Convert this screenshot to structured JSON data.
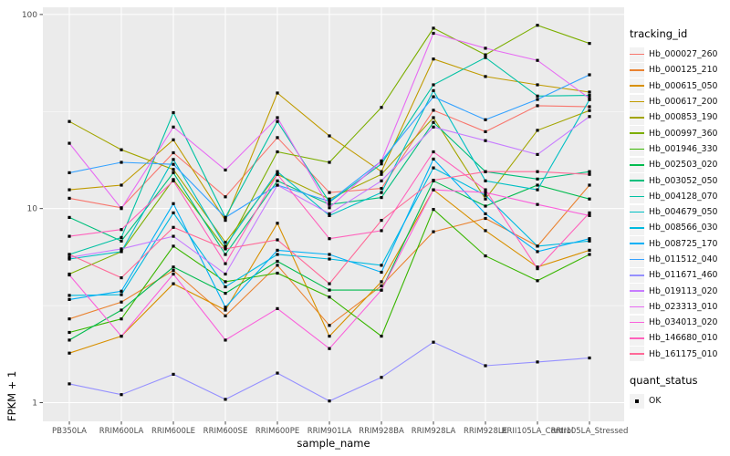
{
  "chart_data": {
    "type": "line",
    "title": "",
    "xlabel": "sample_name",
    "ylabel": "FPKM + 1",
    "y_scale": "log10",
    "y_ticks": [
      1,
      10,
      100
    ],
    "y_minor_gridlines": [
      3.1623,
      31.623
    ],
    "y_range": [
      0.93,
      110
    ],
    "grid": "on",
    "panel_bg": "#EBEBEB",
    "gridline_color": "#FFFFFF",
    "point_color": "#000000",
    "axis_text_color": "#4D4D4D",
    "legend_position": "right",
    "legend_title": "tracking_id",
    "quant_legend": {
      "title": "quant_status",
      "items": [
        "OK"
      ]
    },
    "categories": [
      "PB350LA",
      "RRIM600LA",
      "RRIM600LE",
      "RRIM600SE",
      "RRIM600PE",
      "RRIM901LA",
      "RRIM928BA",
      "RRIM928LA",
      "RRIM928LE",
      "RRII105LA_Control",
      "RRII105LA_Stressed"
    ],
    "series": [
      {
        "name": "Hb_000027_260",
        "color": "#F8766D",
        "values": [
          11.3,
          10.1,
          19.4,
          11.5,
          23.2,
          12.1,
          12.7,
          32.1,
          24.9,
          33.9,
          33.5
        ]
      },
      {
        "name": "Hb_000125_210",
        "color": "#EA8331",
        "values": [
          2.7,
          3.3,
          4.8,
          2.8,
          5.1,
          2.5,
          4.0,
          7.6,
          8.9,
          6.4,
          13.2
        ]
      },
      {
        "name": "Hb_000615_050",
        "color": "#D89000",
        "values": [
          1.8,
          2.2,
          4.1,
          3.0,
          8.4,
          2.2,
          4.2,
          12.5,
          7.7,
          5.0,
          6.1
        ]
      },
      {
        "name": "Hb_000617_200",
        "color": "#C09B00",
        "values": [
          12.5,
          13.2,
          22.6,
          8.7,
          39.4,
          23.7,
          15.5,
          59.0,
          47.9,
          43.4,
          39.8
        ]
      },
      {
        "name": "Hb_000853_190",
        "color": "#A3A500",
        "values": [
          28.1,
          20.1,
          15.9,
          6.7,
          15.0,
          11.2,
          15.0,
          29.4,
          11.2,
          25.3,
          32.0
        ]
      },
      {
        "name": "Hb_000997_360",
        "color": "#7CAE00",
        "values": [
          4.6,
          6.0,
          14.1,
          6.2,
          19.6,
          17.3,
          33.2,
          85.0,
          62.0,
          88.0,
          71.0
        ]
      },
      {
        "name": "Hb_001946_330",
        "color": "#39B600",
        "values": [
          2.3,
          2.7,
          6.4,
          4.2,
          4.65,
          3.5,
          2.2,
          9.9,
          5.7,
          4.25,
          5.8
        ]
      },
      {
        "name": "Hb_002503_020",
        "color": "#00BB4E",
        "values": [
          2.1,
          3.0,
          5.0,
          3.66,
          5.35,
          3.8,
          3.8,
          13.9,
          10.3,
          13.2,
          11.2
        ]
      },
      {
        "name": "Hb_003052_050",
        "color": "#00BF7D",
        "values": [
          9.0,
          6.8,
          15.3,
          5.8,
          13.9,
          10.5,
          11.4,
          27.8,
          15.5,
          14.2,
          15.5
        ]
      },
      {
        "name": "Hb_004128_070",
        "color": "#00C1A3",
        "values": [
          5.8,
          7.1,
          31.2,
          9.0,
          28.1,
          10.8,
          17.0,
          43.4,
          60.0,
          38.0,
          38.3
        ]
      },
      {
        "name": "Hb_004679_050",
        "color": "#00BFC4",
        "values": [
          5.5,
          6.0,
          17.9,
          6.4,
          15.5,
          9.2,
          12.1,
          40.5,
          13.9,
          12.5,
          36.4
        ]
      },
      {
        "name": "Hb_008566_030",
        "color": "#00BAE0",
        "values": [
          3.57,
          3.6,
          9.5,
          3.95,
          5.8,
          5.5,
          5.1,
          16.2,
          11.7,
          6.4,
          6.8
        ]
      },
      {
        "name": "Hb_008725_170",
        "color": "#00B0F6",
        "values": [
          3.4,
          3.75,
          10.6,
          3.1,
          6.1,
          5.8,
          4.7,
          18.0,
          9.4,
          6.0,
          7.0
        ]
      },
      {
        "name": "Hb_011512_040",
        "color": "#35A2FF",
        "values": [
          15.3,
          17.3,
          16.9,
          9.0,
          13.2,
          10.9,
          17.6,
          37.7,
          28.7,
          36.5,
          48.9
        ]
      },
      {
        "name": "Hb_011671_460",
        "color": "#9590FF",
        "values": [
          1.25,
          1.1,
          1.4,
          1.04,
          1.42,
          1.02,
          1.35,
          2.05,
          1.55,
          1.62,
          1.7
        ]
      },
      {
        "name": "Hb_019113_020",
        "color": "#C77CFF",
        "values": [
          5.6,
          6.2,
          7.2,
          4.6,
          13.2,
          9.4,
          13.9,
          26.3,
          22.4,
          19.0,
          29.8
        ]
      },
      {
        "name": "Hb_023313_010",
        "color": "#E76BF3",
        "values": [
          21.7,
          10.0,
          26.3,
          15.8,
          29.4,
          10.1,
          17.6,
          80.0,
          67.0,
          58.0,
          37.0
        ]
      },
      {
        "name": "Hb_034013_020",
        "color": "#FA62DB",
        "values": [
          4.55,
          2.2,
          4.6,
          2.1,
          3.05,
          1.9,
          3.8,
          12.5,
          12.1,
          10.5,
          9.2
        ]
      },
      {
        "name": "Hb_146680_010",
        "color": "#FF62BC",
        "values": [
          7.2,
          7.8,
          13.9,
          5.2,
          15.0,
          7.0,
          7.7,
          19.6,
          12.5,
          4.9,
          9.5
        ]
      },
      {
        "name": "Hb_161175_010",
        "color": "#FF6A98",
        "values": [
          5.8,
          4.4,
          8.0,
          6.2,
          6.9,
          4.1,
          8.7,
          14.0,
          15.5,
          15.5,
          15.0
        ]
      }
    ]
  }
}
